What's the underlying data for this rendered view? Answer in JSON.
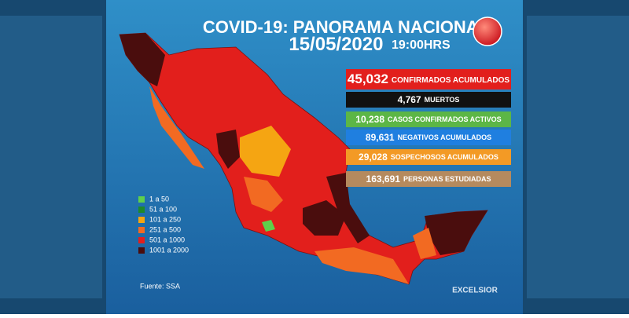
{
  "header": {
    "title": "COVID-19: PANORAMA NACIONAL",
    "date": "15/05/2020",
    "time": "19:00HRS"
  },
  "stats": [
    {
      "value": "45,032",
      "label": "CONFIRMADOS ACUMULADOS",
      "color": "#e21f1c"
    },
    {
      "value": "4,767",
      "label": "MUERTOS",
      "color": "#111111"
    },
    {
      "value": "10,238",
      "label": "CASOS CONFIRMADOS ACTIVOS",
      "color": "#5cb646"
    },
    {
      "value": "89,631",
      "label": "NEGATIVOS ACUMULADOS",
      "color": "#1f7fe0"
    },
    {
      "value": "29,028",
      "label": "SOSPECHOSOS ACUMULADOS",
      "color": "#f39a25"
    },
    {
      "value": "163,691",
      "label": "PERSONAS ESTUDIADAS",
      "color": "#b58a5e"
    }
  ],
  "legend": [
    {
      "label": "1 a 50",
      "color": "#5fd04a"
    },
    {
      "label": "51 a 100",
      "color": "#1e8a2a"
    },
    {
      "label": "101 a 250",
      "color": "#f5a512"
    },
    {
      "label": "251 a 500",
      "color": "#f26a22"
    },
    {
      "label": "501 a 1000",
      "color": "#e21f1c"
    },
    {
      "label": "1001 a 2000",
      "color": "#4a0d0d"
    }
  ],
  "source": "Fuente: SSA",
  "brand": "EXCELSIOR"
}
